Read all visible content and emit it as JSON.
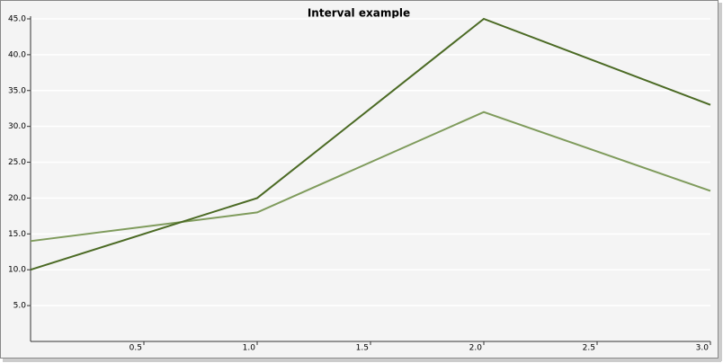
{
  "chart_data": {
    "type": "line",
    "title": "Interval example",
    "x": [
      0,
      1,
      2,
      3
    ],
    "series": [
      {
        "color": "#4b6a24",
        "values": [
          10,
          20,
          45,
          33
        ]
      },
      {
        "color": "#7f9b5c",
        "values": [
          14,
          18,
          32,
          21
        ]
      }
    ],
    "xlim": [
      0,
      3
    ],
    "xticks": [
      0.5,
      {
        "value": 1,
        "label": "1.0"
      },
      1.5,
      {
        "value": 2,
        "label": "2.0"
      },
      2.5,
      {
        "value": 3,
        "label": "3.0"
      }
    ],
    "ylim": [
      0,
      45
    ],
    "yticks": [
      {
        "value": 5,
        "label": "5.0"
      },
      {
        "value": 10,
        "label": "10.0"
      },
      {
        "value": 15,
        "label": "15.0"
      },
      {
        "value": 20,
        "label": "20.0"
      },
      {
        "value": 25,
        "label": "25.0"
      },
      {
        "value": 30,
        "label": "30.0"
      },
      {
        "value": 35,
        "label": "35.0"
      },
      {
        "value": 40,
        "label": "40.0"
      },
      {
        "value": 45,
        "label": "45.0"
      }
    ],
    "grid": true
  }
}
